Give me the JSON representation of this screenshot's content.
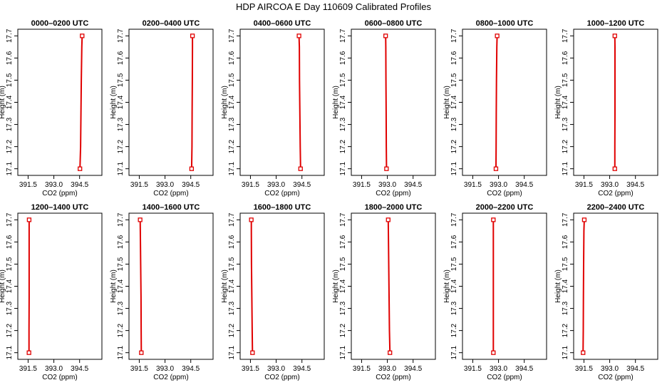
{
  "figure": {
    "title": "HDP AIRCOA E  Day 110609  Calibrated Profiles"
  },
  "chart_data": [
    {
      "type": "line",
      "title": "0000–0200 UTC",
      "xlabel": "CO2 (ppm)",
      "ylabel": "Height (m)",
      "xlim": [
        390.9,
        395.8
      ],
      "ylim": [
        17.07,
        17.73
      ],
      "x_ticks": [
        "391.5",
        "393.0",
        "394.5"
      ],
      "y_ticks": [
        "17.1",
        "17.2",
        "17.3",
        "17.4",
        "17.5",
        "17.6",
        "17.7"
      ],
      "grid": false,
      "color": "#e00000",
      "x": [
        394.52,
        394.56,
        394.58,
        394.6,
        394.63,
        394.65
      ],
      "y": [
        17.1,
        17.2,
        17.35,
        17.5,
        17.65,
        17.7
      ],
      "marker_x": [
        394.52,
        394.65
      ],
      "marker_y": [
        17.1,
        17.7
      ]
    },
    {
      "type": "line",
      "title": "0200–0400 UTC",
      "xlabel": "CO2 (ppm)",
      "ylabel": "Height (m)",
      "xlim": [
        390.9,
        395.8
      ],
      "ylim": [
        17.07,
        17.73
      ],
      "x_ticks": [
        "391.5",
        "393.0",
        "394.5"
      ],
      "y_ticks": [
        "17.1",
        "17.2",
        "17.3",
        "17.4",
        "17.5",
        "17.6",
        "17.7"
      ],
      "grid": false,
      "color": "#e00000",
      "x": [
        394.55,
        394.57,
        394.58,
        394.59,
        394.6,
        394.6
      ],
      "y": [
        17.1,
        17.2,
        17.35,
        17.5,
        17.65,
        17.7
      ],
      "marker_x": [
        394.55,
        394.6
      ],
      "marker_y": [
        17.1,
        17.7
      ]
    },
    {
      "type": "line",
      "title": "0400–0600 UTC",
      "xlabel": "CO2 (ppm)",
      "ylabel": "Height (m)",
      "xlim": [
        390.9,
        395.8
      ],
      "ylim": [
        17.07,
        17.73
      ],
      "x_ticks": [
        "391.5",
        "393.0",
        "394.5"
      ],
      "y_ticks": [
        "17.1",
        "17.2",
        "17.3",
        "17.4",
        "17.5",
        "17.6",
        "17.7"
      ],
      "grid": false,
      "color": "#e00000",
      "x": [
        394.42,
        394.4,
        394.38,
        394.36,
        394.35,
        394.33
      ],
      "y": [
        17.1,
        17.2,
        17.35,
        17.5,
        17.65,
        17.7
      ],
      "marker_x": [
        394.42,
        394.33
      ],
      "marker_y": [
        17.1,
        17.7
      ]
    },
    {
      "type": "line",
      "title": "0600–0800 UTC",
      "xlabel": "CO2 (ppm)",
      "ylabel": "Height (m)",
      "xlim": [
        390.9,
        395.8
      ],
      "ylim": [
        17.07,
        17.73
      ],
      "x_ticks": [
        "391.5",
        "393.0",
        "394.5"
      ],
      "y_ticks": [
        "17.1",
        "17.2",
        "17.3",
        "17.4",
        "17.5",
        "17.6",
        "17.7"
      ],
      "grid": false,
      "color": "#e00000",
      "x": [
        392.95,
        392.94,
        392.93,
        392.92,
        392.91,
        392.9
      ],
      "y": [
        17.1,
        17.2,
        17.35,
        17.5,
        17.65,
        17.7
      ],
      "marker_x": [
        392.95,
        392.9
      ],
      "marker_y": [
        17.1,
        17.7
      ]
    },
    {
      "type": "line",
      "title": "0800–1000 UTC",
      "xlabel": "CO2 (ppm)",
      "ylabel": "Height (m)",
      "xlim": [
        390.9,
        395.8
      ],
      "ylim": [
        17.07,
        17.73
      ],
      "x_ticks": [
        "391.5",
        "393.0",
        "394.5"
      ],
      "y_ticks": [
        "17.1",
        "17.2",
        "17.3",
        "17.4",
        "17.5",
        "17.6",
        "17.7"
      ],
      "grid": false,
      "color": "#e00000",
      "x": [
        392.85,
        392.86,
        392.87,
        392.88,
        392.9,
        392.92
      ],
      "y": [
        17.1,
        17.2,
        17.35,
        17.5,
        17.65,
        17.7
      ],
      "marker_x": [
        392.85,
        392.92
      ],
      "marker_y": [
        17.1,
        17.7
      ]
    },
    {
      "type": "line",
      "title": "1000–1200 UTC",
      "xlabel": "CO2 (ppm)",
      "ylabel": "Height (m)",
      "xlim": [
        390.9,
        395.8
      ],
      "ylim": [
        17.07,
        17.73
      ],
      "x_ticks": [
        "391.5",
        "393.0",
        "394.5"
      ],
      "y_ticks": [
        "17.1",
        "17.2",
        "17.3",
        "17.4",
        "17.5",
        "17.6",
        "17.7"
      ],
      "grid": false,
      "color": "#e00000",
      "x": [
        393.3,
        393.3,
        393.31,
        393.31,
        393.31,
        393.3
      ],
      "y": [
        17.1,
        17.2,
        17.35,
        17.5,
        17.65,
        17.7
      ],
      "marker_x": [
        393.3,
        393.3
      ],
      "marker_y": [
        17.1,
        17.7
      ]
    },
    {
      "type": "line",
      "title": "1200–1400 UTC",
      "xlabel": "CO2 (ppm)",
      "ylabel": "Height (m)",
      "xlim": [
        390.9,
        395.8
      ],
      "ylim": [
        17.07,
        17.73
      ],
      "x_ticks": [
        "391.5",
        "393.0",
        "394.5"
      ],
      "y_ticks": [
        "17.1",
        "17.2",
        "17.3",
        "17.4",
        "17.5",
        "17.6",
        "17.7"
      ],
      "grid": false,
      "color": "#e00000",
      "x": [
        391.55,
        391.55,
        391.56,
        391.56,
        391.56,
        391.56
      ],
      "y": [
        17.1,
        17.2,
        17.35,
        17.5,
        17.65,
        17.7
      ],
      "marker_x": [
        391.55,
        391.56
      ],
      "marker_y": [
        17.1,
        17.7
      ]
    },
    {
      "type": "line",
      "title": "1400–1600 UTC",
      "xlabel": "CO2 (ppm)",
      "ylabel": "Height (m)",
      "xlim": [
        390.9,
        395.8
      ],
      "ylim": [
        17.07,
        17.73
      ],
      "x_ticks": [
        "391.5",
        "393.0",
        "394.5"
      ],
      "y_ticks": [
        "17.1",
        "17.2",
        "17.3",
        "17.4",
        "17.5",
        "17.6",
        "17.7"
      ],
      "grid": false,
      "color": "#e00000",
      "x": [
        391.62,
        391.61,
        391.6,
        391.58,
        391.56,
        391.55
      ],
      "y": [
        17.1,
        17.2,
        17.35,
        17.5,
        17.65,
        17.7
      ],
      "marker_x": [
        391.62,
        391.55
      ],
      "marker_y": [
        17.1,
        17.7
      ]
    },
    {
      "type": "line",
      "title": "1600–1800 UTC",
      "xlabel": "CO2 (ppm)",
      "ylabel": "Height (m)",
      "xlim": [
        390.9,
        395.8
      ],
      "ylim": [
        17.07,
        17.73
      ],
      "x_ticks": [
        "391.5",
        "393.0",
        "394.5"
      ],
      "y_ticks": [
        "17.1",
        "17.2",
        "17.3",
        "17.4",
        "17.5",
        "17.6",
        "17.7"
      ],
      "grid": false,
      "color": "#e00000",
      "x": [
        391.62,
        391.6,
        391.58,
        391.56,
        391.55,
        391.55
      ],
      "y": [
        17.1,
        17.2,
        17.35,
        17.5,
        17.65,
        17.7
      ],
      "marker_x": [
        391.62,
        391.55
      ],
      "marker_y": [
        17.1,
        17.7
      ]
    },
    {
      "type": "line",
      "title": "1800–2000 UTC",
      "xlabel": "CO2 (ppm)",
      "ylabel": "Height (m)",
      "xlim": [
        390.9,
        395.8
      ],
      "ylim": [
        17.07,
        17.73
      ],
      "x_ticks": [
        "391.5",
        "393.0",
        "394.5"
      ],
      "y_ticks": [
        "17.1",
        "17.2",
        "17.3",
        "17.4",
        "17.5",
        "17.6",
        "17.7"
      ],
      "grid": false,
      "color": "#e00000",
      "x": [
        393.15,
        393.12,
        393.1,
        393.08,
        393.06,
        393.05
      ],
      "y": [
        17.1,
        17.2,
        17.35,
        17.5,
        17.65,
        17.7
      ],
      "marker_x": [
        393.15,
        393.05
      ],
      "marker_y": [
        17.1,
        17.7
      ]
    },
    {
      "type": "line",
      "title": "2000–2200 UTC",
      "xlabel": "CO2 (ppm)",
      "ylabel": "Height (m)",
      "xlim": [
        390.9,
        395.8
      ],
      "ylim": [
        17.07,
        17.73
      ],
      "x_ticks": [
        "391.5",
        "393.0",
        "394.5"
      ],
      "y_ticks": [
        "17.1",
        "17.2",
        "17.3",
        "17.4",
        "17.5",
        "17.6",
        "17.7"
      ],
      "grid": false,
      "color": "#e00000",
      "x": [
        392.7,
        392.7,
        392.7,
        392.7,
        392.7,
        392.7
      ],
      "y": [
        17.1,
        17.2,
        17.35,
        17.5,
        17.65,
        17.7
      ],
      "marker_x": [
        392.7,
        392.7
      ],
      "marker_y": [
        17.1,
        17.7
      ]
    },
    {
      "type": "line",
      "title": "2200–2400 UTC",
      "xlabel": "CO2 (ppm)",
      "ylabel": "Height (m)",
      "xlim": [
        390.9,
        395.8
      ],
      "ylim": [
        17.07,
        17.73
      ],
      "x_ticks": [
        "391.5",
        "393.0",
        "394.5"
      ],
      "y_ticks": [
        "17.1",
        "17.2",
        "17.3",
        "17.4",
        "17.5",
        "17.6",
        "17.7"
      ],
      "grid": false,
      "color": "#e00000",
      "x": [
        391.45,
        391.46,
        391.47,
        391.48,
        391.5,
        391.52
      ],
      "y": [
        17.1,
        17.2,
        17.35,
        17.5,
        17.65,
        17.7
      ],
      "marker_x": [
        391.45,
        391.52
      ],
      "marker_y": [
        17.1,
        17.7
      ]
    }
  ]
}
